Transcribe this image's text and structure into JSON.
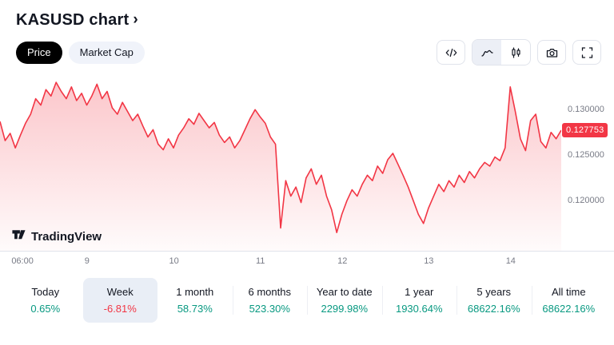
{
  "header": {
    "title": "KASUSD chart",
    "chevron": "›"
  },
  "toggles": {
    "price": "Price",
    "market_cap": "Market Cap"
  },
  "toolbar": {
    "icons": [
      "code-icon",
      "area-chart-icon",
      "candlestick-icon",
      "camera-icon",
      "fullscreen-icon"
    ],
    "active_icon": "area-chart-icon"
  },
  "logo": {
    "text": "TradingView"
  },
  "chart_data": {
    "type": "area",
    "title": "KASUSD chart",
    "symbol": "KASUSD",
    "line_color": "#F23645",
    "fill_color_top": "rgba(242,54,69,0.28)",
    "fill_color_bottom": "rgba(242,54,69,0.02)",
    "ylim": [
      0.1145,
      0.1338
    ],
    "current_price": "0.127753",
    "y_axis_labels": [
      "0.130000",
      "0.125000",
      "0.120000"
    ],
    "x_ticks": [
      "06:00",
      "9",
      "10",
      "11",
      "12",
      "13",
      "14"
    ],
    "values": [
      0.1287,
      0.1266,
      0.1274,
      0.1258,
      0.1272,
      0.1285,
      0.1295,
      0.1312,
      0.1305,
      0.1322,
      0.1315,
      0.133,
      0.132,
      0.1312,
      0.1325,
      0.131,
      0.1318,
      0.1305,
      0.1315,
      0.1328,
      0.1312,
      0.132,
      0.1302,
      0.1295,
      0.1308,
      0.1298,
      0.1288,
      0.1295,
      0.1282,
      0.127,
      0.1278,
      0.1262,
      0.1256,
      0.1268,
      0.1258,
      0.1272,
      0.128,
      0.129,
      0.1284,
      0.1296,
      0.1288,
      0.128,
      0.1286,
      0.1272,
      0.1264,
      0.127,
      0.1258,
      0.1266,
      0.1278,
      0.129,
      0.13,
      0.1292,
      0.1285,
      0.127,
      0.1262,
      0.117,
      0.1222,
      0.1205,
      0.1215,
      0.1198,
      0.1225,
      0.1235,
      0.1218,
      0.1228,
      0.1205,
      0.119,
      0.1165,
      0.1185,
      0.12,
      0.1212,
      0.1205,
      0.1218,
      0.1228,
      0.1222,
      0.1238,
      0.123,
      0.1245,
      0.1252,
      0.124,
      0.1228,
      0.1215,
      0.12,
      0.1185,
      0.1175,
      0.1192,
      0.1205,
      0.1218,
      0.121,
      0.1222,
      0.1215,
      0.1228,
      0.122,
      0.1232,
      0.1225,
      0.1235,
      0.1242,
      0.1238,
      0.1248,
      0.1244,
      0.1258,
      0.1325,
      0.1298,
      0.1268,
      0.1255,
      0.1288,
      0.1295,
      0.1265,
      0.1258,
      0.1275,
      0.1268,
      0.12775
    ]
  },
  "stats": [
    {
      "label": "Today",
      "value": "0.65%",
      "color": "green",
      "selected": false
    },
    {
      "label": "Week",
      "value": "-6.81%",
      "color": "red",
      "selected": true
    },
    {
      "label": "1 month",
      "value": "58.73%",
      "color": "green",
      "selected": false
    },
    {
      "label": "6 months",
      "value": "523.30%",
      "color": "green",
      "selected": false
    },
    {
      "label": "Year to date",
      "value": "2299.98%",
      "color": "green",
      "selected": false
    },
    {
      "label": "1 year",
      "value": "1930.64%",
      "color": "green",
      "selected": false
    },
    {
      "label": "5 years",
      "value": "68622.16%",
      "color": "green",
      "selected": false
    },
    {
      "label": "All time",
      "value": "68622.16%",
      "color": "green",
      "selected": false
    }
  ]
}
